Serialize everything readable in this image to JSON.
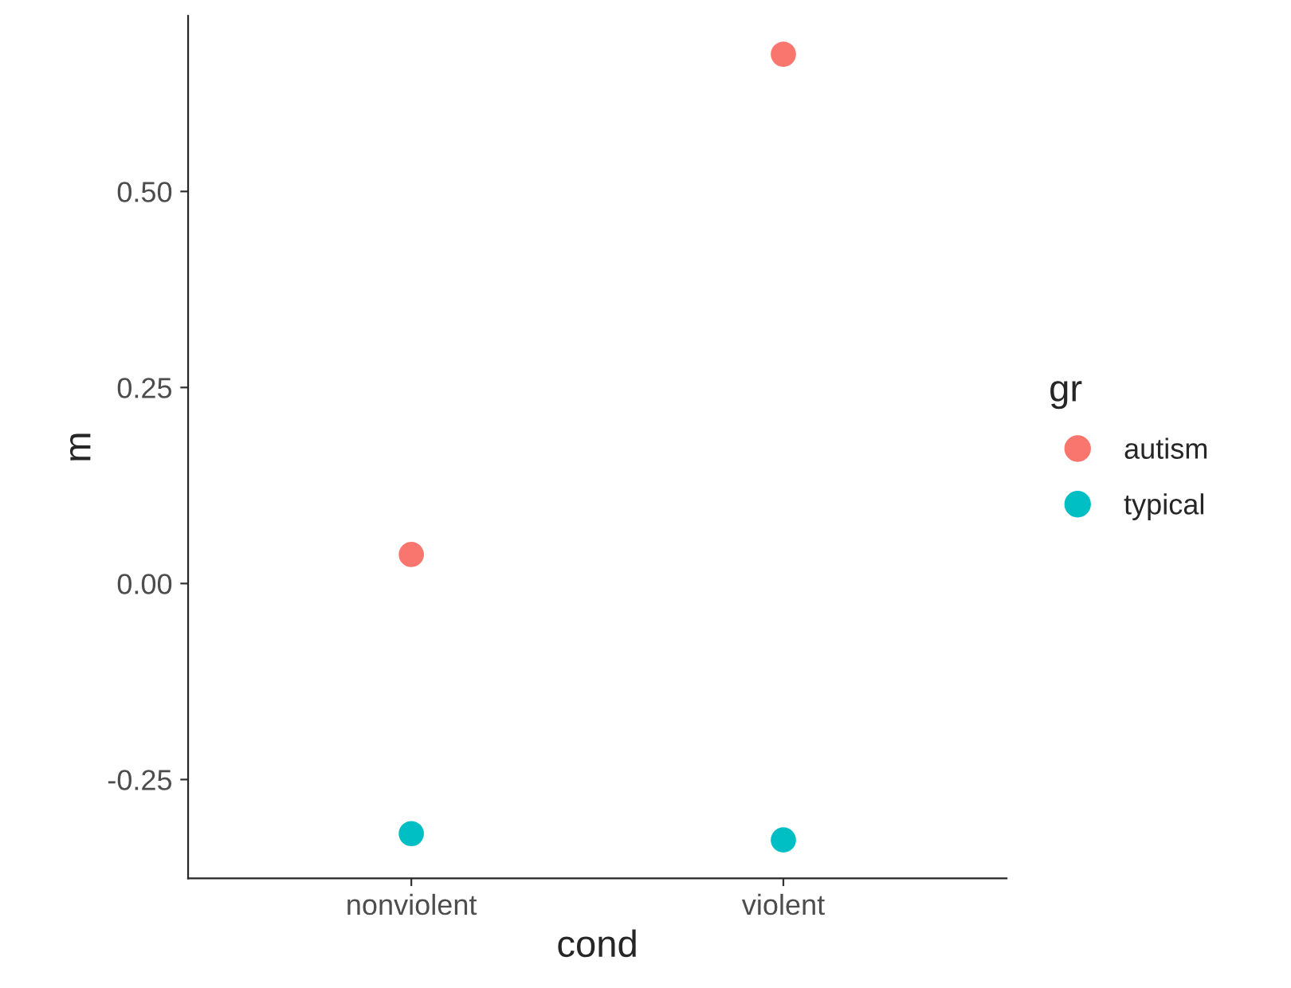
{
  "chart_data": {
    "type": "scatter",
    "xlabel": "cond",
    "ylabel": "m",
    "legend_title": "gr",
    "categories": [
      "nonviolent",
      "violent"
    ],
    "series": [
      {
        "name": "autism",
        "color": "#f8766d",
        "values": [
          0.037,
          0.675
        ]
      },
      {
        "name": "typical",
        "color": "#00bfc4",
        "values": [
          -0.319,
          -0.327
        ]
      }
    ],
    "ylim": [
      -0.376,
      0.724
    ],
    "yticks": [
      {
        "value": -0.25,
        "label": "-0.25"
      },
      {
        "value": 0,
        "label": "0.00"
      },
      {
        "value": 0.25,
        "label": "0.25"
      },
      {
        "value": 0.5,
        "label": "0.50"
      }
    ],
    "grid": false,
    "legend": "right",
    "marker": "circle"
  }
}
